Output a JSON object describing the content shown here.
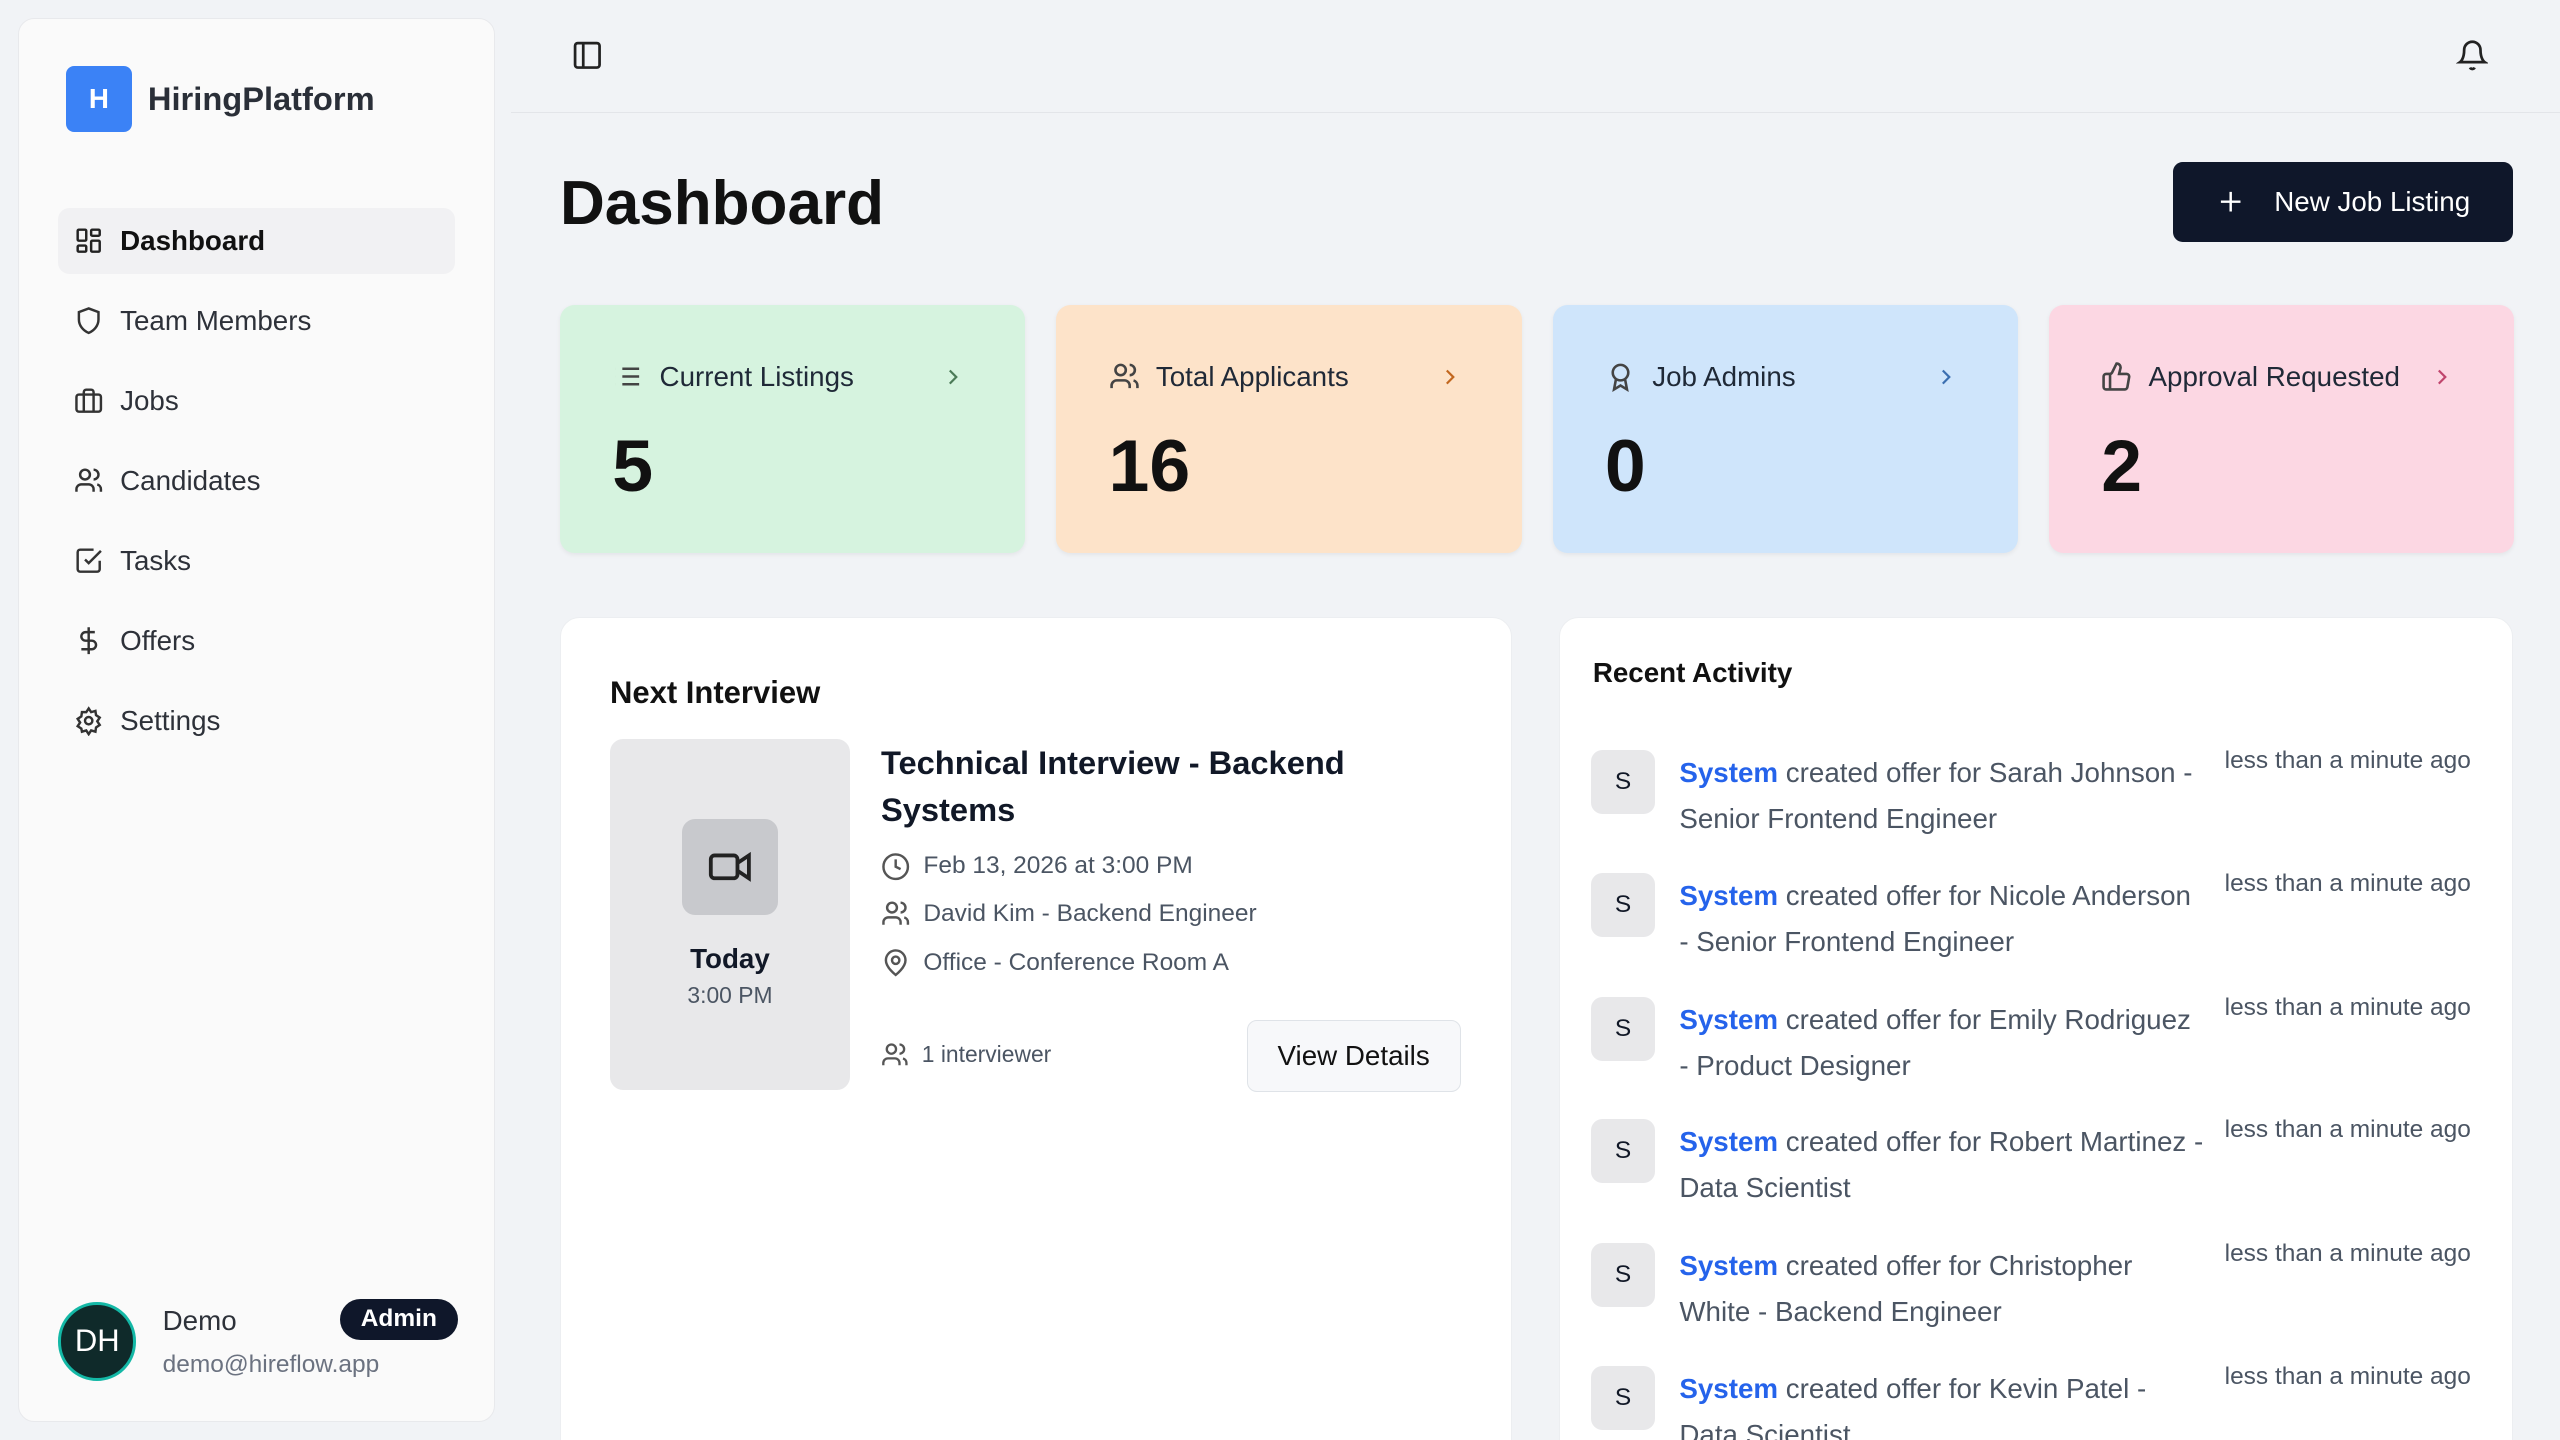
{
  "app": {
    "logo_letter": "H",
    "name": "HiringPlatform"
  },
  "sidebar": {
    "items": [
      {
        "label": "Dashboard",
        "icon": "layout-dashboard-icon",
        "active": true
      },
      {
        "label": "Team Members",
        "icon": "shield-icon"
      },
      {
        "label": "Jobs",
        "icon": "briefcase-icon"
      },
      {
        "label": "Candidates",
        "icon": "users-icon"
      },
      {
        "label": "Tasks",
        "icon": "check-square-icon"
      },
      {
        "label": "Offers",
        "icon": "dollar-icon"
      },
      {
        "label": "Settings",
        "icon": "gear-icon"
      }
    ]
  },
  "user": {
    "initials": "DH",
    "name": "Demo",
    "email": "demo@hireflow.app",
    "role": "Admin"
  },
  "page": {
    "title": "Dashboard",
    "new_button": "New Job Listing"
  },
  "stats": [
    {
      "label": "Current Listings",
      "value": "5",
      "bg": "#d6f3df",
      "icon": "list-icon",
      "chev": "#4b7a57"
    },
    {
      "label": "Total Applicants",
      "value": "16",
      "bg": "#fde3c9",
      "icon": "users-icon",
      "chev": "#c2671f"
    },
    {
      "label": "Job Admins",
      "value": "0",
      "bg": "#cfe5fb",
      "icon": "award-icon",
      "chev": "#3b6fb0"
    },
    {
      "label": "Approval Requested",
      "value": "2",
      "bg": "#fcd7e3",
      "icon": "thumbs-up-icon",
      "chev": "#c0456d"
    }
  ],
  "interview": {
    "heading": "Next Interview",
    "day": "Today",
    "time": "3:00 PM",
    "title": "Technical Interview - Backend Systems",
    "date": "Feb 13, 2026 at 3:00 PM",
    "candidate": "David Kim - Backend Engineer",
    "location": "Office - Conference Room A",
    "interviewers": "1 interviewer",
    "view_button": "View Details"
  },
  "activity": {
    "heading": "Recent Activity",
    "items": [
      {
        "avatar": "S",
        "actor": "System",
        "text": " created offer for Sarah Johnson - Senior Frontend Engineer",
        "time": "less than a minute ago"
      },
      {
        "avatar": "S",
        "actor": "System",
        "text": " created offer for Nicole Anderson - Senior Frontend Engineer",
        "time": "less than a minute ago"
      },
      {
        "avatar": "S",
        "actor": "System",
        "text": " created offer for Emily Rodriguez - Product Designer",
        "time": "less than a minute ago"
      },
      {
        "avatar": "S",
        "actor": "System",
        "text": " created offer for Robert Martinez - Data Scientist",
        "time": "less than a minute ago"
      },
      {
        "avatar": "S",
        "actor": "System",
        "text": " created offer for Christopher White - Backend Engineer",
        "time": "less than a minute ago"
      },
      {
        "avatar": "S",
        "actor": "System",
        "text": " created offer for Kevin Patel - Data Scientist",
        "time": "less than a minute ago"
      }
    ]
  }
}
